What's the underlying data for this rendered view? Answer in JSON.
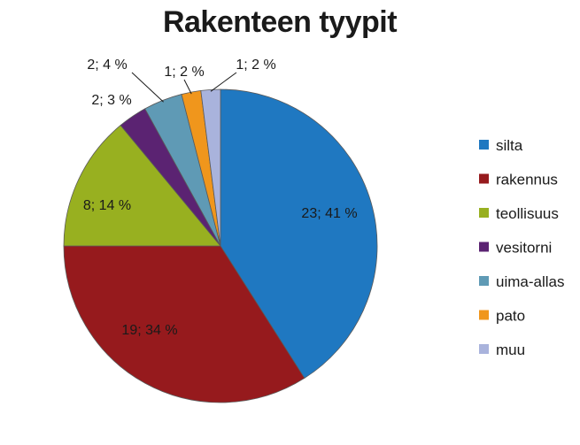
{
  "chart_data": {
    "type": "pie",
    "title": "Rakenteen tyypit",
    "legend_position": "right",
    "slices": [
      {
        "name": "silta",
        "value": 23,
        "percent": 41,
        "label": "23; 41 %",
        "color": "#1f78c1"
      },
      {
        "name": "rakennus",
        "value": 19,
        "percent": 34,
        "label": "19; 34 %",
        "color": "#961a1d"
      },
      {
        "name": "teollisuus",
        "value": 8,
        "percent": 14,
        "label": "8; 14 %",
        "color": "#98b020"
      },
      {
        "name": "vesitorni",
        "value": 2,
        "percent": 3,
        "label": "2; 3 %",
        "color": "#5b2372"
      },
      {
        "name": "uima-allas",
        "value": 2,
        "percent": 4,
        "label": "2; 4 %",
        "color": "#5f9ab5"
      },
      {
        "name": "pato",
        "value": 1,
        "percent": 2,
        "label": "1; 2 %",
        "color": "#f0961c"
      },
      {
        "name": "muu",
        "value": 1,
        "percent": 2,
        "label": "1; 2 %",
        "color": "#a9b3dc"
      }
    ]
  }
}
